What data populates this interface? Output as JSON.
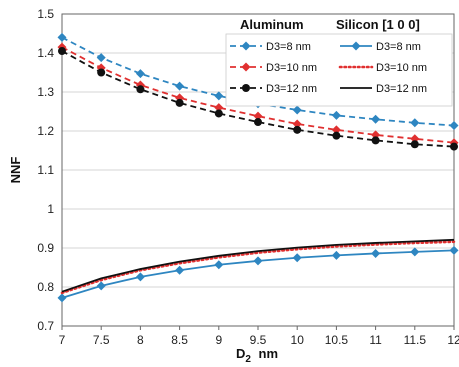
{
  "chart_data": {
    "type": "line",
    "title": "",
    "xlabel": "D",
    "xlabel_sub": "2",
    "xlabel_unit": "nm",
    "ylabel": "NNF",
    "xlim": [
      7,
      12
    ],
    "ylim": [
      0.7,
      1.5
    ],
    "x_ticks": [
      7,
      7.5,
      8,
      8.5,
      9,
      9.5,
      10,
      10.5,
      11,
      11.5,
      12
    ],
    "x_tick_labels": [
      "7",
      "7.5",
      "8",
      "8.5",
      "9",
      "9.5",
      "10",
      "10.5",
      "11",
      "11.5",
      "12"
    ],
    "y_ticks": [
      0.7,
      0.8,
      0.9,
      1.0,
      1.1,
      1.2,
      1.3,
      1.4,
      1.5
    ],
    "y_tick_labels": [
      "0.7",
      "0.8",
      "0.9",
      "1",
      "1.1",
      "1.2",
      "1.3",
      "1.4",
      "1.5"
    ],
    "grid": "horizontal",
    "legend_position": "top-right",
    "legend_groups": [
      "Aluminum",
      "Silicon [1 0 0]"
    ],
    "x": [
      7,
      7.5,
      8,
      8.5,
      9,
      9.5,
      10,
      10.5,
      11,
      11.5,
      12
    ],
    "series": [
      {
        "group": "Aluminum",
        "name": "D3=8 nm",
        "color": "#2E86C1",
        "dash": "dashed",
        "marker": "diamond",
        "values": [
          1.44,
          1.388,
          1.347,
          1.315,
          1.29,
          1.27,
          1.254,
          1.24,
          1.23,
          1.221,
          1.214
        ]
      },
      {
        "group": "Aluminum",
        "name": "D3=10 nm",
        "color": "#E03030",
        "dash": "dashed",
        "marker": "diamond",
        "values": [
          1.415,
          1.362,
          1.318,
          1.285,
          1.26,
          1.238,
          1.218,
          1.203,
          1.19,
          1.18,
          1.17
        ]
      },
      {
        "group": "Aluminum",
        "name": "D3=12 nm",
        "color": "#111111",
        "dash": "dashed",
        "marker": "circle",
        "values": [
          1.405,
          1.35,
          1.307,
          1.272,
          1.245,
          1.223,
          1.203,
          1.188,
          1.176,
          1.166,
          1.16
        ]
      },
      {
        "group": "Silicon [1 0 0]",
        "name": "D3=8 nm",
        "color": "#2E86C1",
        "dash": "solid",
        "marker": "diamond",
        "values": [
          0.772,
          0.803,
          0.826,
          0.843,
          0.857,
          0.867,
          0.875,
          0.881,
          0.886,
          0.89,
          0.894
        ]
      },
      {
        "group": "Silicon [1 0 0]",
        "name": "D3=10 nm",
        "color": "#E03030",
        "dash": "dotted",
        "marker": "none",
        "values": [
          0.785,
          0.818,
          0.843,
          0.861,
          0.876,
          0.888,
          0.897,
          0.904,
          0.909,
          0.913,
          0.916
        ]
      },
      {
        "group": "Silicon [1 0 0]",
        "name": "D3=12 nm",
        "color": "#111111",
        "dash": "solid",
        "marker": "none",
        "values": [
          0.788,
          0.822,
          0.846,
          0.865,
          0.88,
          0.892,
          0.901,
          0.908,
          0.913,
          0.917,
          0.921
        ]
      }
    ]
  }
}
